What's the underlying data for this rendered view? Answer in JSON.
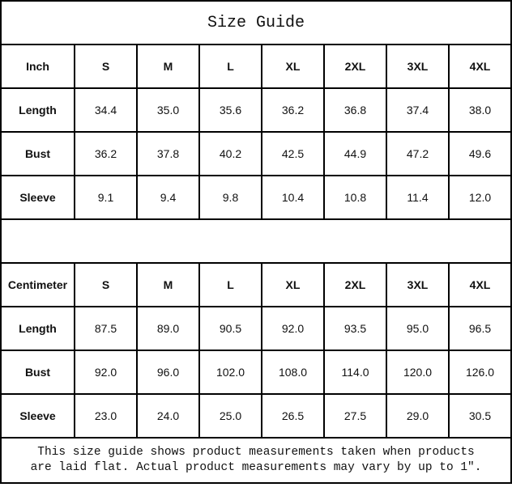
{
  "title": "Size Guide",
  "tables": [
    {
      "unit": "Inch",
      "sizes": [
        "S",
        "M",
        "L",
        "XL",
        "2XL",
        "3XL",
        "4XL"
      ],
      "rows": [
        {
          "label": "Length",
          "values": [
            "34.4",
            "35.0",
            "35.6",
            "36.2",
            "36.8",
            "37.4",
            "38.0"
          ]
        },
        {
          "label": "Bust",
          "values": [
            "36.2",
            "37.8",
            "40.2",
            "42.5",
            "44.9",
            "47.2",
            "49.6"
          ]
        },
        {
          "label": "Sleeve",
          "values": [
            "9.1",
            "9.4",
            "9.8",
            "10.4",
            "10.8",
            "11.4",
            "12.0"
          ]
        }
      ]
    },
    {
      "unit": "Centimeter",
      "sizes": [
        "S",
        "M",
        "L",
        "XL",
        "2XL",
        "3XL",
        "4XL"
      ],
      "rows": [
        {
          "label": "Length",
          "values": [
            "87.5",
            "89.0",
            "90.5",
            "92.0",
            "93.5",
            "95.0",
            "96.5"
          ]
        },
        {
          "label": "Bust",
          "values": [
            "92.0",
            "96.0",
            "102.0",
            "108.0",
            "114.0",
            "120.0",
            "126.0"
          ]
        },
        {
          "label": "Sleeve",
          "values": [
            "23.0",
            "24.0",
            "25.0",
            "26.5",
            "27.5",
            "29.0",
            "30.5"
          ]
        }
      ]
    }
  ],
  "note_line1": "This size guide shows product measurements taken when products",
  "note_line2": "are laid flat. Actual product measurements may vary by up to 1″."
}
